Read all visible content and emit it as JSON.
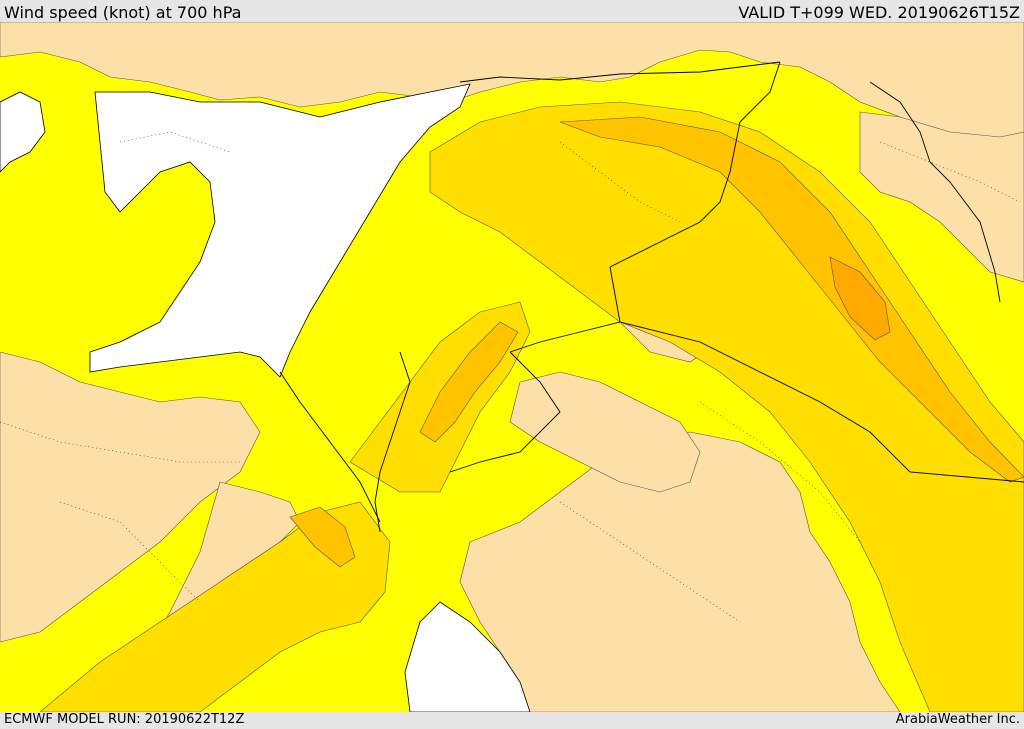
{
  "header": {
    "title": "Wind speed (knot) at 700 hPa",
    "valid": "VALID T+099 WED. 20190626T15Z"
  },
  "footer": {
    "model_run": "ECMWF MODEL RUN: 20190622T12Z",
    "credit": "ArabiaWeather Inc."
  },
  "colors": {
    "band_low": "#fde0a8",
    "band_1": "#ffff00",
    "band_2": "#ffdf00",
    "band_3": "#ffc300",
    "band_4": "#ffaa00",
    "sea": "#ffffff",
    "border": "#000000"
  }
}
